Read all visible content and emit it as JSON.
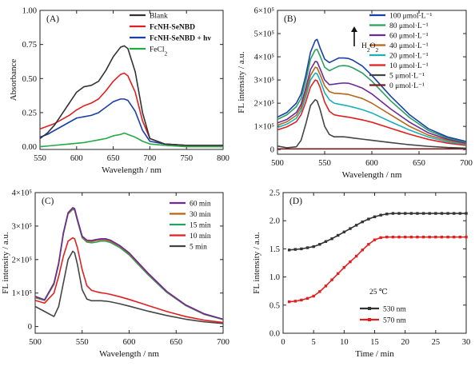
{
  "figure": {
    "panels_order": [
      "A",
      "B",
      "C",
      "D"
    ]
  },
  "chart_data": [
    {
      "id": "A",
      "type": "line",
      "panel_label": "(A)",
      "xlabel": "Wavelength / nm",
      "ylabel": "Absorbance",
      "xlim": [
        550,
        800
      ],
      "ylim": [
        -0.02,
        1.0
      ],
      "xticks": [
        550,
        600,
        650,
        700,
        750,
        800
      ],
      "yticks": [
        0.0,
        0.25,
        0.5,
        0.75,
        1.0
      ],
      "ytick_labels": [
        "0.00",
        "0.25",
        "0.50",
        "0.75",
        "1.00"
      ],
      "grid": false,
      "legend_position": "top-right",
      "series": [
        {
          "name": "Blank",
          "color": "#333333",
          "bold": false,
          "x": [
            550,
            560,
            570,
            580,
            590,
            600,
            610,
            620,
            630,
            640,
            650,
            660,
            665,
            670,
            680,
            690,
            700,
            720,
            750,
            800
          ],
          "y": [
            0.06,
            0.1,
            0.16,
            0.24,
            0.32,
            0.4,
            0.44,
            0.45,
            0.48,
            0.56,
            0.66,
            0.73,
            0.74,
            0.72,
            0.55,
            0.25,
            0.06,
            0.02,
            0.01,
            0.01
          ]
        },
        {
          "name": "FcNH-SeNBD",
          "color": "#e02020",
          "bold": true,
          "x": [
            550,
            560,
            570,
            580,
            590,
            600,
            610,
            620,
            630,
            640,
            650,
            660,
            665,
            670,
            680,
            690,
            700,
            720,
            750,
            800
          ],
          "y": [
            0.13,
            0.15,
            0.17,
            0.2,
            0.23,
            0.27,
            0.3,
            0.32,
            0.35,
            0.41,
            0.48,
            0.53,
            0.54,
            0.52,
            0.4,
            0.19,
            0.06,
            0.02,
            0.01,
            0.01
          ]
        },
        {
          "name": "FcNH-SeNBD + hν",
          "color": "#1a3fa8",
          "bold": true,
          "x": [
            550,
            560,
            570,
            580,
            590,
            600,
            610,
            620,
            630,
            640,
            650,
            660,
            665,
            670,
            680,
            690,
            700,
            720,
            750,
            800
          ],
          "y": [
            0.07,
            0.09,
            0.12,
            0.15,
            0.18,
            0.21,
            0.22,
            0.23,
            0.25,
            0.29,
            0.33,
            0.35,
            0.35,
            0.34,
            0.26,
            0.12,
            0.04,
            0.02,
            0.01,
            0.01
          ]
        },
        {
          "name": "FeCl2",
          "color": "#22aa44",
          "bold": false,
          "x": [
            550,
            570,
            590,
            610,
            620,
            630,
            640,
            650,
            660,
            665,
            670,
            680,
            690,
            700,
            720,
            750,
            800
          ],
          "y": [
            0.0,
            0.01,
            0.02,
            0.03,
            0.04,
            0.05,
            0.06,
            0.08,
            0.09,
            0.1,
            0.09,
            0.07,
            0.04,
            0.02,
            0.01,
            0.0,
            0.0
          ]
        }
      ]
    },
    {
      "id": "B",
      "type": "line",
      "panel_label": "(B)",
      "xlabel": "Wavelength / nm",
      "ylabel": "FL intensity / a.u.",
      "xlim": [
        500,
        700
      ],
      "ylim": [
        -20000,
        600000
      ],
      "xticks": [
        500,
        550,
        600,
        650,
        700
      ],
      "yticks": [
        0,
        100000,
        200000,
        300000,
        400000,
        500000,
        600000
      ],
      "ytick_labels": [
        "0",
        "1×10⁵",
        "2×10⁵",
        "3×10⁵",
        "4×10⁵",
        "5×10⁵",
        "6×10⁵"
      ],
      "grid": false,
      "legend_position": "top-right",
      "annotation": {
        "text": "H2O2",
        "arrow": "up"
      },
      "x": [
        500,
        510,
        520,
        525,
        530,
        535,
        540,
        542,
        545,
        550,
        555,
        560,
        565,
        570,
        575,
        580,
        590,
        600,
        620,
        640,
        660,
        680,
        700
      ],
      "series": [
        {
          "name": "100 μmol·L⁻¹",
          "color": "#1a3fa8",
          "y": [
            140000,
            160000,
            200000,
            240000,
            320000,
            420000,
            470000,
            475000,
            440000,
            390000,
            375000,
            385000,
            395000,
            395000,
            393000,
            385000,
            360000,
            320000,
            230000,
            150000,
            90000,
            55000,
            35000
          ]
        },
        {
          "name": "80 μmol·L⁻¹",
          "color": "#2aa060",
          "y": [
            130000,
            150000,
            185000,
            220000,
            295000,
            390000,
            430000,
            432000,
            405000,
            355000,
            340000,
            350000,
            360000,
            362000,
            360000,
            352000,
            330000,
            295000,
            210000,
            138000,
            82000,
            50000,
            32000
          ]
        },
        {
          "name": "60 μmol·L⁻¹",
          "color": "#6a2a9a",
          "y": [
            115000,
            130000,
            160000,
            195000,
            265000,
            345000,
            380000,
            378000,
            350000,
            300000,
            280000,
            282000,
            285000,
            287000,
            286000,
            280000,
            265000,
            240000,
            175000,
            118000,
            72000,
            45000,
            28000
          ]
        },
        {
          "name": "40 μmol·L⁻¹",
          "color": "#b8651a",
          "y": [
            105000,
            120000,
            148000,
            182000,
            245000,
            320000,
            355000,
            352000,
            325000,
            275000,
            250000,
            243000,
            242000,
            240000,
            238000,
            232000,
            220000,
            200000,
            150000,
            100000,
            62000,
            40000,
            25000
          ]
        },
        {
          "name": "20 μmol·L⁻¹",
          "color": "#1ab0b8",
          "y": [
            95000,
            110000,
            135000,
            168000,
            228000,
            300000,
            330000,
            327000,
            300000,
            245000,
            215000,
            200000,
            196000,
            192000,
            188000,
            183000,
            172000,
            158000,
            120000,
            84000,
            54000,
            34000,
            22000
          ]
        },
        {
          "name": "10 μmol·L⁻¹",
          "color": "#e02020",
          "y": [
            85000,
            98000,
            120000,
            150000,
            205000,
            270000,
            300000,
            297000,
            270000,
            205000,
            165000,
            150000,
            146000,
            143000,
            140000,
            136000,
            128000,
            118000,
            92000,
            66000,
            44000,
            28000,
            18000
          ]
        },
        {
          "name": "5 μmol·L⁻¹",
          "color": "#444444",
          "y": [
            15000,
            8000,
            12000,
            40000,
            110000,
            190000,
            215000,
            210000,
            175000,
            100000,
            65000,
            55000,
            55000,
            55000,
            53000,
            50000,
            45000,
            40000,
            30000,
            21000,
            14000,
            9000,
            6000
          ]
        },
        {
          "name": "0 μmol·L⁻¹",
          "color": "#7a1a1a",
          "y": [
            3000,
            3000,
            3000,
            3000,
            3000,
            3000,
            3000,
            3000,
            3000,
            3000,
            3000,
            3000,
            3000,
            3000,
            3000,
            3000,
            3000,
            3000,
            3000,
            3000,
            3000,
            3000,
            3000
          ]
        }
      ]
    },
    {
      "id": "C",
      "type": "line",
      "panel_label": "(C)",
      "xlabel": "Wavelength / nm",
      "ylabel": "FL intensity / a.u.",
      "xlim": [
        500,
        700
      ],
      "ylim": [
        -20000,
        400000
      ],
      "xticks": [
        500,
        550,
        600,
        650,
        700
      ],
      "yticks": [
        0,
        100000,
        200000,
        300000,
        400000
      ],
      "ytick_labels": [
        "0",
        "1×10⁵",
        "2×10⁵",
        "3×10⁵",
        "4×10⁵"
      ],
      "grid": false,
      "legend_position": "top-right",
      "x": [
        500,
        510,
        520,
        525,
        530,
        535,
        540,
        542,
        545,
        550,
        555,
        560,
        565,
        570,
        575,
        580,
        590,
        600,
        620,
        640,
        660,
        680,
        700
      ],
      "series": [
        {
          "name": "60 min",
          "color": "#6a2a9a",
          "y": [
            90000,
            80000,
            130000,
            190000,
            280000,
            340000,
            355000,
            352000,
            320000,
            270000,
            258000,
            257000,
            260000,
            262000,
            262000,
            258000,
            242000,
            220000,
            160000,
            105000,
            65000,
            38000,
            22000
          ]
        },
        {
          "name": "30 min",
          "color": "#b8651a",
          "y": [
            88000,
            80000,
            128000,
            188000,
            278000,
            338000,
            353000,
            350000,
            318000,
            268000,
            255000,
            254000,
            257000,
            259000,
            259000,
            255000,
            240000,
            218000,
            158000,
            104000,
            64000,
            37000,
            22000
          ]
        },
        {
          "name": "15 min",
          "color": "#2aa060",
          "y": [
            86000,
            78000,
            126000,
            186000,
            276000,
            336000,
            350000,
            347000,
            315000,
            265000,
            252000,
            250000,
            252000,
            255000,
            255000,
            251000,
            236000,
            214000,
            155000,
            102000,
            63000,
            36000,
            21000
          ]
        },
        {
          "name": "10 min",
          "color": "#e02020",
          "y": [
            78000,
            70000,
            100000,
            150000,
            210000,
            255000,
            265000,
            262000,
            235000,
            170000,
            122000,
            108000,
            104000,
            101000,
            99000,
            96000,
            89000,
            81000,
            63000,
            45000,
            30000,
            19000,
            12000
          ]
        },
        {
          "name": "5 min",
          "color": "#444444",
          "y": [
            60000,
            45000,
            30000,
            60000,
            130000,
            200000,
            225000,
            220000,
            185000,
            110000,
            82000,
            77000,
            77000,
            77000,
            76000,
            74000,
            68000,
            61000,
            46000,
            33000,
            22000,
            14000,
            9000
          ]
        }
      ]
    },
    {
      "id": "D",
      "type": "line",
      "panel_label": "(D)",
      "xlabel": "Time / min",
      "ylabel": "FL intensity / a.u.",
      "xlim": [
        0,
        30
      ],
      "ylim": [
        0.0,
        2.5
      ],
      "xticks": [
        0,
        5,
        10,
        15,
        20,
        25,
        30
      ],
      "yticks": [
        0.0,
        0.5,
        1.0,
        1.5,
        2.0,
        2.5
      ],
      "ytick_labels": [
        "0.0",
        "0.5",
        "1.0",
        "1.5",
        "2.0",
        "2.5"
      ],
      "grid": false,
      "legend_position": "bottom-right",
      "annotation": {
        "text": "25 ℃"
      },
      "series": [
        {
          "name": "530 nm",
          "color": "#333333",
          "marker": "square",
          "x": [
            1,
            2,
            3,
            4,
            5,
            6,
            7,
            8,
            9,
            10,
            11,
            12,
            13,
            14,
            15,
            16,
            17,
            18,
            19,
            20,
            21,
            22,
            23,
            24,
            25,
            26,
            27,
            28,
            29,
            30
          ],
          "y": [
            1.48,
            1.49,
            1.5,
            1.52,
            1.54,
            1.58,
            1.63,
            1.68,
            1.74,
            1.8,
            1.86,
            1.92,
            1.98,
            2.03,
            2.07,
            2.1,
            2.12,
            2.13,
            2.13,
            2.13,
            2.13,
            2.13,
            2.13,
            2.13,
            2.13,
            2.13,
            2.13,
            2.13,
            2.13,
            2.13
          ]
        },
        {
          "name": "570 nm",
          "color": "#e02020",
          "marker": "square",
          "x": [
            1,
            2,
            3,
            4,
            5,
            6,
            7,
            8,
            9,
            10,
            11,
            12,
            13,
            14,
            15,
            16,
            17,
            18,
            19,
            20,
            21,
            22,
            23,
            24,
            25,
            26,
            27,
            28,
            29,
            30
          ],
          "y": [
            0.56,
            0.57,
            0.59,
            0.62,
            0.66,
            0.74,
            0.84,
            0.95,
            1.06,
            1.17,
            1.27,
            1.37,
            1.48,
            1.58,
            1.66,
            1.7,
            1.71,
            1.71,
            1.71,
            1.71,
            1.71,
            1.71,
            1.71,
            1.71,
            1.71,
            1.71,
            1.71,
            1.71,
            1.71,
            1.71
          ]
        }
      ]
    }
  ]
}
